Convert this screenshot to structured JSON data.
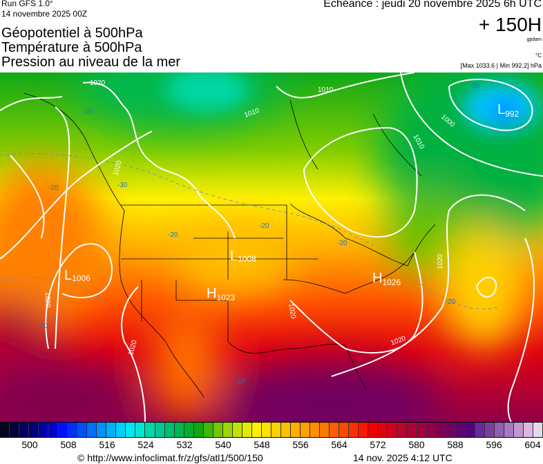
{
  "header": {
    "run": "Run GFS 1.0°",
    "run_date": "14 novembre 2025 00Z",
    "titles": [
      "Géopotentiel à 500hPa",
      "Température à 500hPa",
      "Pression au niveau de la mer"
    ],
    "echeance": "Echéance : jeudi 20 novembre 2025 6h UTC",
    "lead_time": "+ 150H",
    "unit_geopotential": "gpdam",
    "unit_temperature": "°C",
    "pressure_range": "[Max 1033.6 | Min 992.2] hPa"
  },
  "map": {
    "pressure_centers": [
      {
        "type": "L",
        "value": "992"
      },
      {
        "type": "L",
        "value": "1006"
      },
      {
        "type": "L",
        "value": "1008"
      },
      {
        "type": "H",
        "value": "1023"
      },
      {
        "type": "H",
        "value": "1026"
      }
    ],
    "isobar_labels": [
      "1020",
      "1020",
      "1010",
      "1010",
      "1010",
      "1000",
      "1020",
      "1020",
      "1020",
      "1020",
      "1020"
    ],
    "temperature_labels": [
      "-30",
      "-30",
      "-20",
      "-20",
      "-20",
      "-20",
      "-20",
      "-20",
      "-10",
      "-10"
    ],
    "colors": {
      "isobar": "#ffffff",
      "temperature_contour": "#5a8fc8",
      "coastline": "#000000"
    }
  },
  "colorbar": {
    "ticks": [
      "500",
      "508",
      "516",
      "524",
      "532",
      "540",
      "548",
      "556",
      "564",
      "572",
      "580",
      "588",
      "596",
      "604"
    ],
    "unit": "gpdam",
    "colors": [
      "#05051e",
      "#000040",
      "#000060",
      "#000080",
      "#0000a8",
      "#0000d0",
      "#0010ff",
      "#0030ff",
      "#0050ff",
      "#0070ff",
      "#0090ff",
      "#00b0ff",
      "#00d0ff",
      "#00e8f0",
      "#00e8d0",
      "#00d8a8",
      "#00c890",
      "#00c070",
      "#00b850",
      "#00b030",
      "#10a810",
      "#40b808",
      "#70c800",
      "#98d800",
      "#c0e400",
      "#e0ec00",
      "#fff000",
      "#ffe000",
      "#ffd000",
      "#ffc000",
      "#ffb000",
      "#ffa000",
      "#ff9000",
      "#ff7800",
      "#ff6000",
      "#ff4800",
      "#ff3000",
      "#ff1800",
      "#f00000",
      "#e00010",
      "#d00020",
      "#c00030",
      "#b00038",
      "#a00040",
      "#900048",
      "#800050",
      "#700060",
      "#600070",
      "#500080",
      "#6a2898",
      "#7a40a0",
      "#9060b0",
      "#a878c0",
      "#c098d0",
      "#d8b8e0",
      "#e8d8ec"
    ]
  },
  "footer": {
    "credit": "© http://www.infoclimat.fr/z/gfs/atl1/500/150",
    "timestamp": "14 nov. 2025  4:12 UTC"
  }
}
